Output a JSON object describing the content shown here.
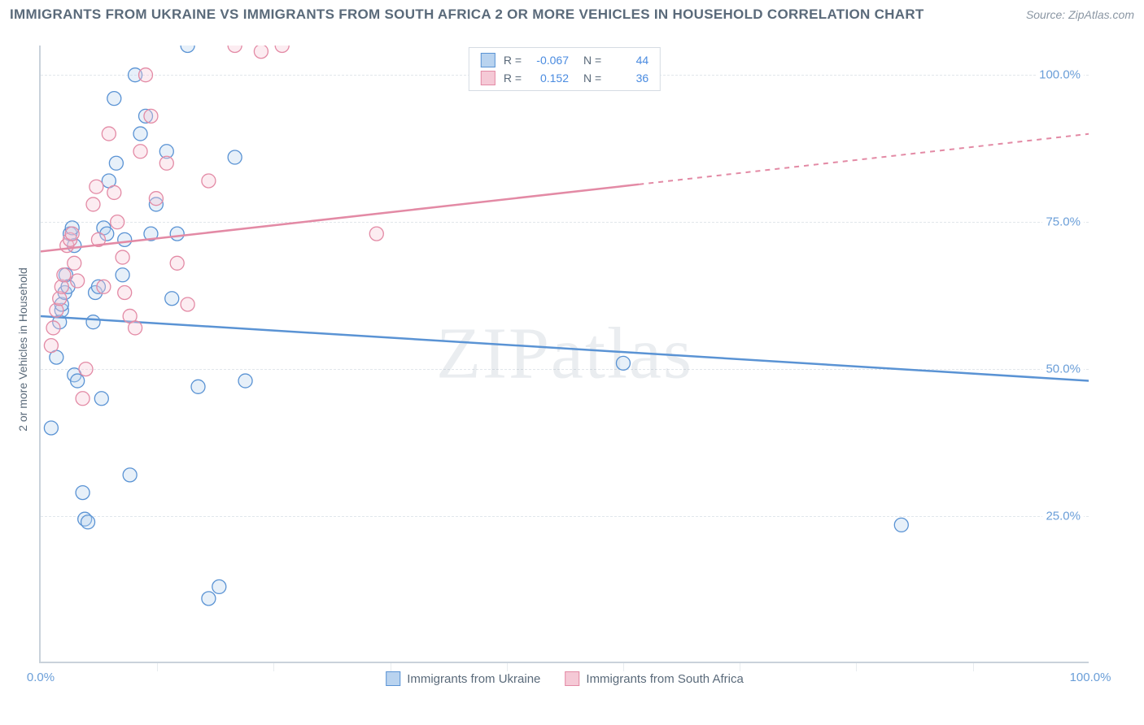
{
  "title": "IMMIGRANTS FROM UKRAINE VS IMMIGRANTS FROM SOUTH AFRICA 2 OR MORE VEHICLES IN HOUSEHOLD CORRELATION CHART",
  "source": "Source: ZipAtlas.com",
  "watermark": "ZIPatlas",
  "ylabel": "2 or more Vehicles in Household",
  "chart": {
    "type": "scatter-correlation",
    "xlim": [
      0,
      100
    ],
    "ylim": [
      0,
      105
    ],
    "y_ticks": [
      25,
      50,
      75,
      100
    ],
    "y_tick_labels": [
      "25.0%",
      "50.0%",
      "75.0%",
      "100.0%"
    ],
    "x_ticks": [
      0,
      100
    ],
    "x_tick_labels": [
      "0.0%",
      "100.0%"
    ],
    "x_minor_ticks": [
      11.1,
      22.2,
      33.3,
      44.4,
      55.5,
      66.6,
      77.7,
      88.8
    ],
    "grid_color": "#e1e6eb",
    "axis_color": "#c9d2db",
    "background_color": "#ffffff",
    "marker_radius": 8.5,
    "marker_stroke_width": 1.3,
    "marker_fill_opacity": 0.35,
    "series": [
      {
        "name": "Immigrants from Ukraine",
        "color_stroke": "#5a93d4",
        "color_fill": "#b9d3ef",
        "R": "-0.067",
        "N": "44",
        "trend": {
          "y_at_x0": 59,
          "y_at_x100": 48,
          "solid_to_x": 100
        },
        "points": [
          [
            1.0,
            40
          ],
          [
            1.5,
            52
          ],
          [
            1.8,
            58
          ],
          [
            2.0,
            60
          ],
          [
            2.0,
            61
          ],
          [
            2.3,
            63
          ],
          [
            2.4,
            66
          ],
          [
            2.6,
            64
          ],
          [
            2.8,
            73
          ],
          [
            3.0,
            74
          ],
          [
            3.2,
            71
          ],
          [
            3.2,
            49
          ],
          [
            3.5,
            48
          ],
          [
            4.0,
            29
          ],
          [
            4.2,
            24.5
          ],
          [
            4.5,
            24
          ],
          [
            5.0,
            58
          ],
          [
            5.2,
            63
          ],
          [
            5.5,
            64
          ],
          [
            5.8,
            45
          ],
          [
            6.0,
            74
          ],
          [
            6.3,
            73
          ],
          [
            6.5,
            82
          ],
          [
            7.0,
            96
          ],
          [
            7.2,
            85
          ],
          [
            7.8,
            66
          ],
          [
            8.0,
            72
          ],
          [
            8.5,
            32
          ],
          [
            9.0,
            100
          ],
          [
            9.5,
            90
          ],
          [
            10.0,
            93
          ],
          [
            10.5,
            73
          ],
          [
            11.0,
            78
          ],
          [
            12.0,
            87
          ],
          [
            12.5,
            62
          ],
          [
            13.0,
            73
          ],
          [
            14.0,
            105
          ],
          [
            15.0,
            47
          ],
          [
            16.0,
            11
          ],
          [
            17.0,
            13
          ],
          [
            18.5,
            86
          ],
          [
            19.5,
            48
          ],
          [
            82.0,
            23.5
          ],
          [
            55.5,
            51
          ]
        ]
      },
      {
        "name": "Immigrants from South Africa",
        "color_stroke": "#e38aa5",
        "color_fill": "#f5c9d6",
        "R": "0.152",
        "N": "36",
        "trend": {
          "y_at_x0": 70,
          "y_at_x100": 90,
          "solid_to_x": 57
        },
        "points": [
          [
            1.0,
            54
          ],
          [
            1.2,
            57
          ],
          [
            1.5,
            60
          ],
          [
            1.8,
            62
          ],
          [
            2.0,
            64
          ],
          [
            2.2,
            66
          ],
          [
            2.5,
            71
          ],
          [
            2.8,
            72
          ],
          [
            3.0,
            73
          ],
          [
            3.2,
            68
          ],
          [
            3.5,
            65
          ],
          [
            4.0,
            45
          ],
          [
            4.3,
            50
          ],
          [
            5.0,
            78
          ],
          [
            5.3,
            81
          ],
          [
            5.5,
            72
          ],
          [
            6.0,
            64
          ],
          [
            6.5,
            90
          ],
          [
            7.0,
            80
          ],
          [
            7.3,
            75
          ],
          [
            7.8,
            69
          ],
          [
            8.0,
            63
          ],
          [
            8.5,
            59
          ],
          [
            9.0,
            57
          ],
          [
            9.5,
            87
          ],
          [
            10.0,
            100
          ],
          [
            10.5,
            93
          ],
          [
            11.0,
            79
          ],
          [
            12.0,
            85
          ],
          [
            13.0,
            68
          ],
          [
            14.0,
            61
          ],
          [
            16.0,
            82
          ],
          [
            18.5,
            105
          ],
          [
            21.0,
            104
          ],
          [
            23.0,
            105
          ],
          [
            32.0,
            73
          ]
        ]
      }
    ]
  },
  "legend_top": {
    "rows": [
      {
        "swatch_fill": "#b9d3ef",
        "swatch_stroke": "#5a93d4",
        "r_label": "R =",
        "r_val": "-0.067",
        "n_label": "N =",
        "n_val": "44"
      },
      {
        "swatch_fill": "#f5c9d6",
        "swatch_stroke": "#e38aa5",
        "r_label": "R =",
        "r_val": "0.152",
        "n_label": "N =",
        "n_val": "36"
      }
    ]
  },
  "legend_bottom": {
    "items": [
      {
        "swatch_fill": "#b9d3ef",
        "swatch_stroke": "#5a93d4",
        "label": "Immigrants from Ukraine"
      },
      {
        "swatch_fill": "#f5c9d6",
        "swatch_stroke": "#e38aa5",
        "label": "Immigrants from South Africa"
      }
    ]
  }
}
